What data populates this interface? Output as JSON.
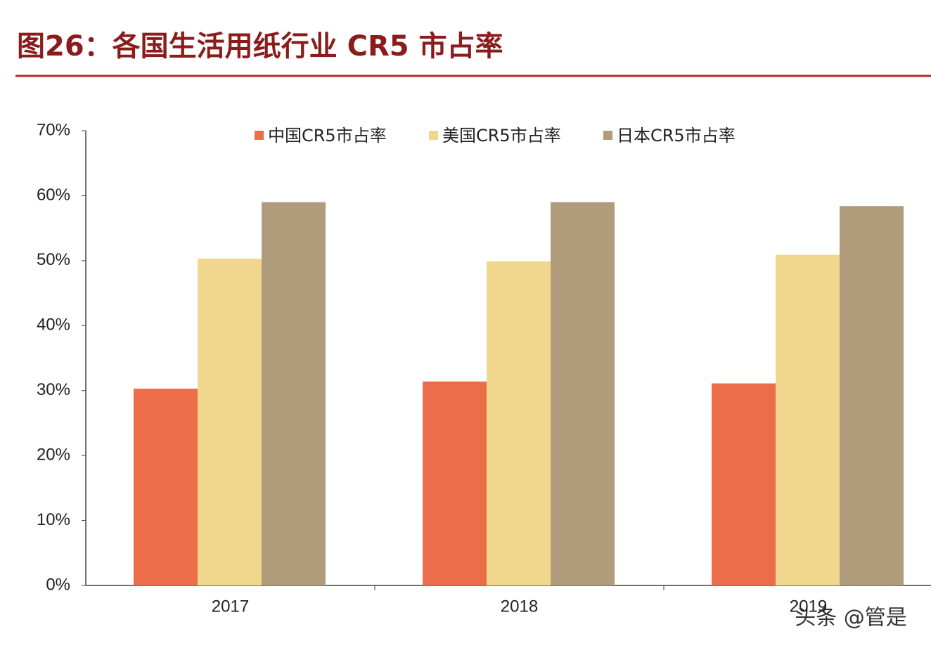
{
  "chart_data": {
    "type": "bar",
    "title": "图26：各国生活用纸行业 CR5 市占率",
    "categories": [
      "2017",
      "2018",
      "2019"
    ],
    "series": [
      {
        "name": "中国CR5市占率",
        "color": "#ec6d4a",
        "values": [
          30.3,
          31.4,
          31.1
        ]
      },
      {
        "name": "美国CR5市占率",
        "color": "#f0d78d",
        "values": [
          50.3,
          49.9,
          50.9
        ]
      },
      {
        "name": "日本CR5市占率",
        "color": "#b09b7b",
        "values": [
          59.0,
          59.0,
          58.4
        ]
      }
    ],
    "ylim": [
      0,
      70
    ],
    "yticks": [
      {
        "value": 0,
        "label": "0%"
      },
      {
        "value": 10,
        "label": "10%"
      },
      {
        "value": 20,
        "label": "20%"
      },
      {
        "value": 30,
        "label": "30%"
      },
      {
        "value": 40,
        "label": "40%"
      },
      {
        "value": 50,
        "label": "50%"
      },
      {
        "value": 60,
        "label": "60%"
      },
      {
        "value": 70,
        "label": "70%"
      }
    ],
    "grid": false,
    "legend": "top",
    "watermark": "头条 @管是"
  }
}
